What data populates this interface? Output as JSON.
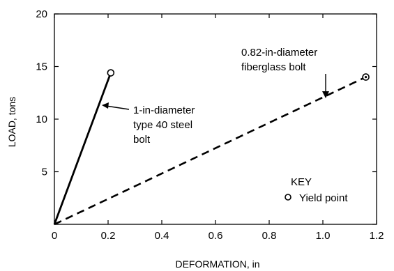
{
  "chart_data": {
    "type": "line",
    "xlabel": "DEFORMATION, in",
    "ylabel": "LOAD, tons",
    "xlim": [
      0,
      1.2
    ],
    "ylim": [
      0,
      20
    ],
    "xticks": [
      0,
      0.2,
      0.4,
      0.6,
      0.8,
      1.0,
      1.2
    ],
    "xtick_labels": [
      "0",
      "0.2",
      "0.4",
      "0.6",
      "0.8",
      "1.0",
      "1.2"
    ],
    "yticks": [
      0,
      5,
      10,
      15,
      20
    ],
    "ytick_labels": [
      "",
      "5",
      "10",
      "15",
      "20"
    ],
    "grid": false,
    "series": [
      {
        "name": "1-in-diameter type 40 steel bolt",
        "label_lines": [
          "1-in-diameter",
          "type 40 steel",
          "bolt"
        ],
        "style": "solid",
        "x": [
          0,
          0.21
        ],
        "y": [
          0,
          14.4
        ],
        "yield_point": [
          0.21,
          14.4
        ]
      },
      {
        "name": "0.82-in-diameter fiberglass bolt",
        "label_lines": [
          "0.82-in-diameter",
          "fiberglass bolt"
        ],
        "style": "dashed",
        "x": [
          0,
          1.16
        ],
        "y": [
          0,
          14
        ]
      }
    ],
    "key": {
      "title": "KEY",
      "label": "Yield point"
    }
  }
}
